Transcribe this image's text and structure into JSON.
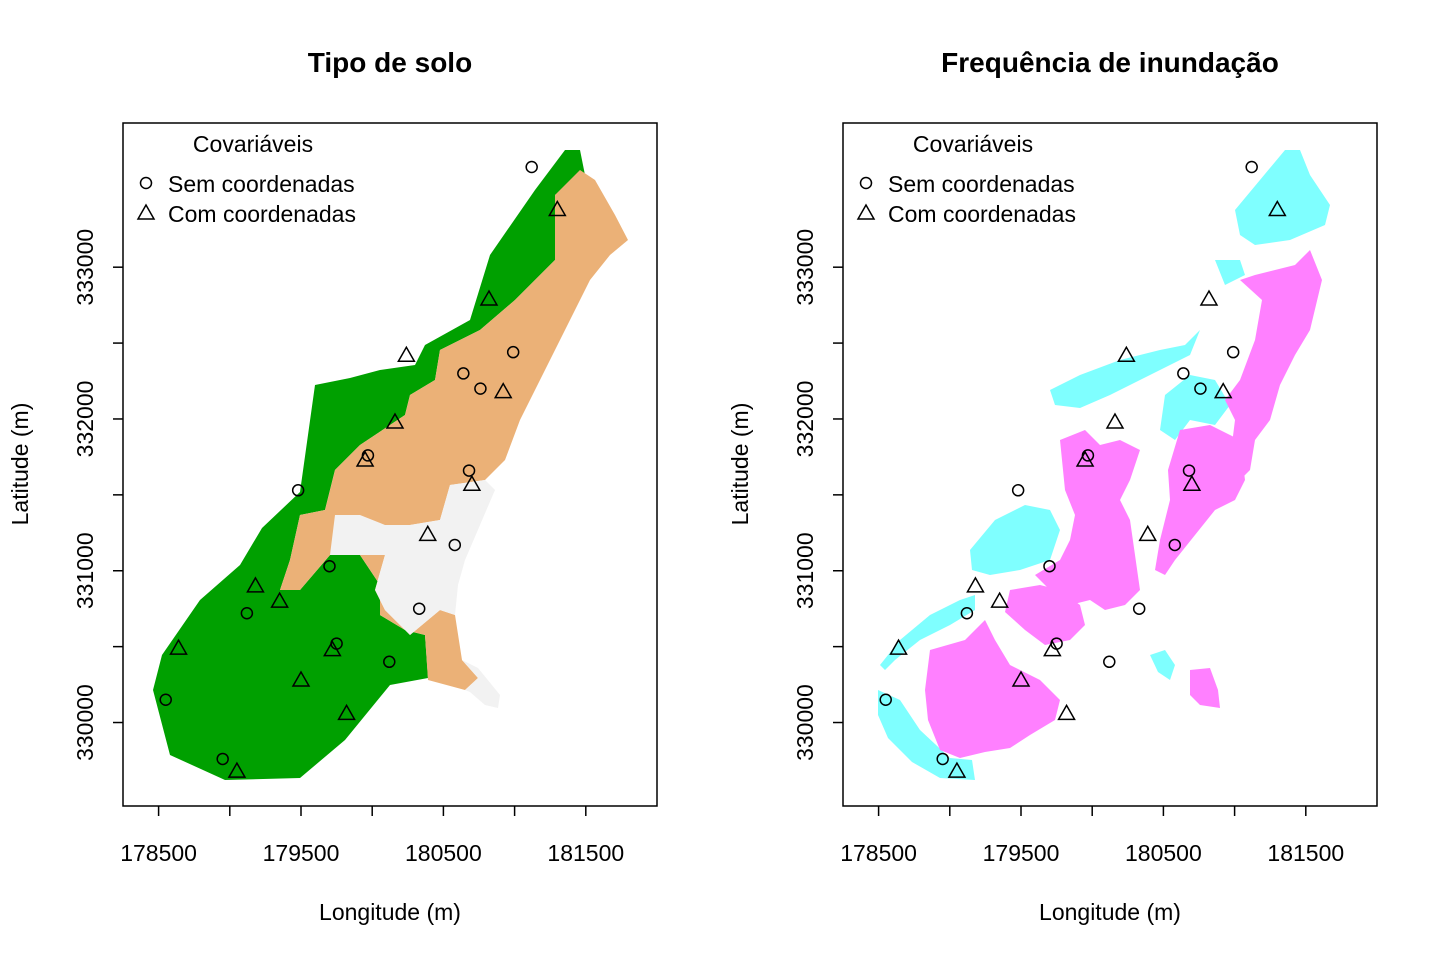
{
  "chart_data": [
    {
      "type": "map",
      "title": "Tipo de solo",
      "xlabel": "Longitude (m)",
      "ylabel": "Latitude (m)",
      "xlim": [
        178250,
        182000
      ],
      "ylim": [
        329450,
        333950
      ],
      "xticks": [
        "178500",
        "179500",
        "180500",
        "181500"
      ],
      "yticks": [
        "330000",
        "331000",
        "332000",
        "333000"
      ],
      "legend": {
        "title": "Covariáveis",
        "position": "top-left",
        "entries": [
          {
            "label": "Sem coordenadas",
            "marker": "circle"
          },
          {
            "label": "Com coordenadas",
            "marker": "triangle"
          }
        ]
      },
      "layer_colors": {
        "class1": "#00a000",
        "class2": "#ebb177",
        "class3": "#f2f2f2"
      }
    },
    {
      "type": "map",
      "title": "Frequência de inundação",
      "xlabel": "Longitude (m)",
      "ylabel": "Latitude (m)",
      "xlim": [
        178250,
        182000
      ],
      "ylim": [
        329450,
        333950
      ],
      "xticks": [
        "178500",
        "179500",
        "180500",
        "181500"
      ],
      "yticks": [
        "330000",
        "331000",
        "332000",
        "333000"
      ],
      "legend": {
        "title": "Covariáveis",
        "position": "top-left",
        "entries": [
          {
            "label": "Sem coordenadas",
            "marker": "circle"
          },
          {
            "label": "Com coordenadas",
            "marker": "triangle"
          }
        ]
      },
      "layer_colors": {
        "class1": "#7fffff",
        "class2": "#ff80ff"
      }
    }
  ],
  "points_circle": [
    [
      181120,
      333660
    ],
    [
      180990,
      332440
    ],
    [
      180640,
      332300
    ],
    [
      180760,
      332200
    ],
    [
      179970,
      331760
    ],
    [
      180680,
      331660
    ],
    [
      179480,
      331530
    ],
    [
      180580,
      331170
    ],
    [
      179700,
      331030
    ],
    [
      180330,
      330750
    ],
    [
      179120,
      330720
    ],
    [
      179750,
      330520
    ],
    [
      180120,
      330400
    ],
    [
      178550,
      330150
    ],
    [
      178950,
      329760
    ]
  ],
  "points_triangle": [
    [
      181300,
      333380
    ],
    [
      180820,
      332790
    ],
    [
      180240,
      332420
    ],
    [
      180920,
      332180
    ],
    [
      180160,
      331980
    ],
    [
      179950,
      331730
    ],
    [
      180700,
      331570
    ],
    [
      180390,
      331240
    ],
    [
      179180,
      330900
    ],
    [
      179350,
      330800
    ],
    [
      178640,
      330490
    ],
    [
      179720,
      330480
    ],
    [
      179500,
      330280
    ],
    [
      179820,
      330060
    ],
    [
      179050,
      329680
    ]
  ]
}
